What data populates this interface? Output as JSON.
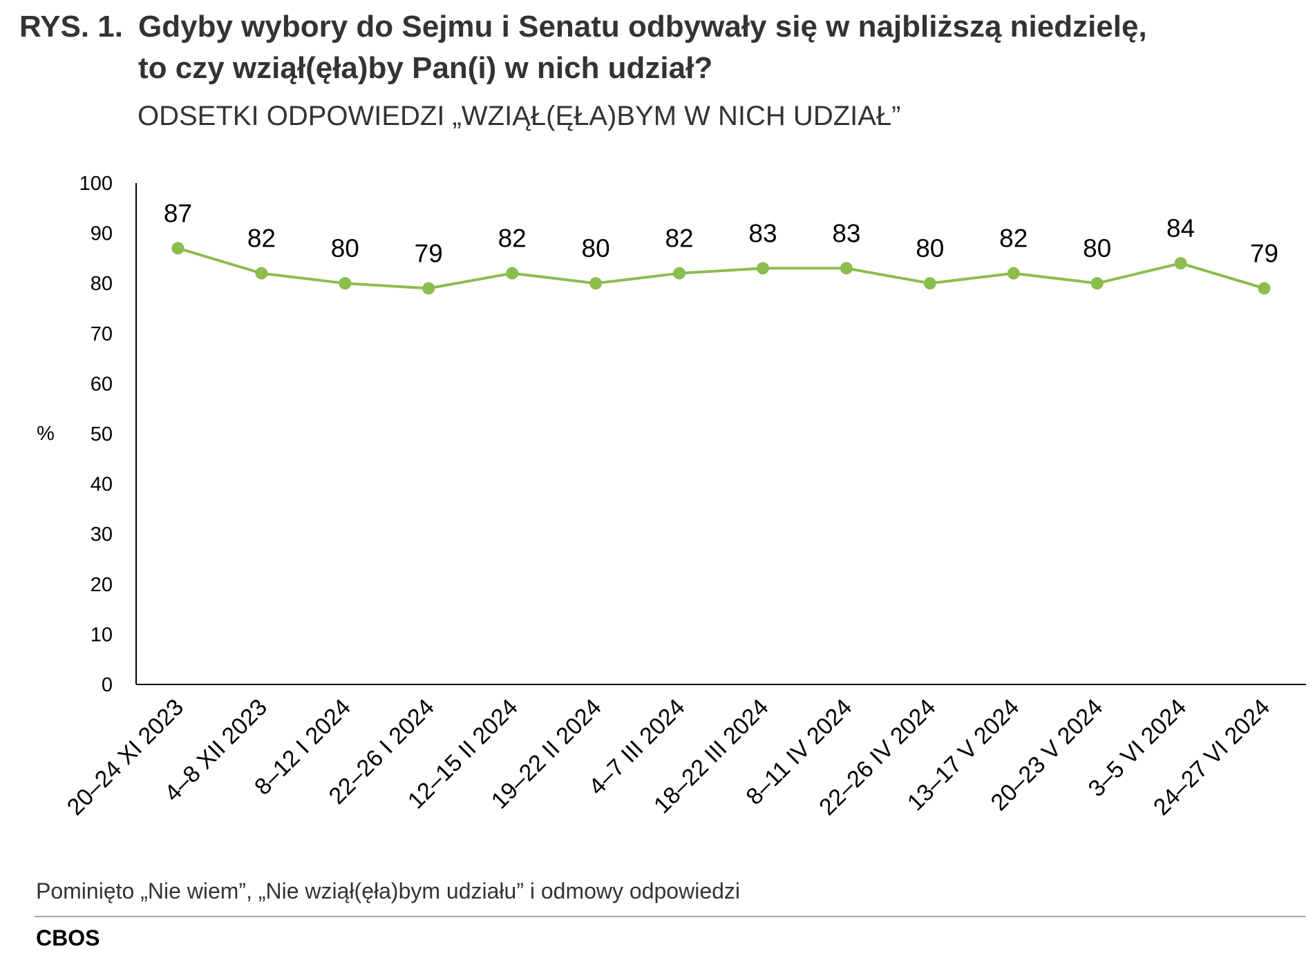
{
  "title": {
    "prefix": "RYS. 1.",
    "line1": "Gdyby wybory do Sejmu i Senatu odbywały się w najbliższą niedzielę,",
    "line2": "to czy wziął(ęła)by Pan(i) w nich udział?"
  },
  "subtitle": "ODSETKI ODPOWIEDZI „WZIĄŁ(ĘŁA)BYM W NICH UDZIAŁ”",
  "footnote": "Pominięto „Nie wiem”, „Nie wziął(ęła)bym udziału” i odmowy odpowiedzi",
  "source": "CBOS",
  "colors": {
    "line": "#8bbd4f",
    "axis": "#000000"
  },
  "chart_data": {
    "type": "line",
    "title": "Gdyby wybory do Sejmu i Senatu odbywały się w najbliższą niedzielę, to czy wziął(ęła)by Pan(i) w nich udział?",
    "subtitle": "ODSETKI ODPOWIEDZI „WZIĄŁ(ĘŁA)BYM W NICH UDZIAŁ”",
    "ylabel": "%",
    "xlabel": "",
    "ylim": [
      0,
      100
    ],
    "yticks": [
      0,
      10,
      20,
      30,
      40,
      50,
      60,
      70,
      80,
      90,
      100
    ],
    "grid": false,
    "legend": "none",
    "categories": [
      "20–24 XI 2023",
      "4–8 XII 2023",
      "8–12 I 2024",
      "22–26 I 2024",
      "12–15 II 2024",
      "19–22 II 2024",
      "4–7 III 2024",
      "18–22 III 2024",
      "8–11 IV 2024",
      "22–26 IV 2024",
      "13–17 V 2024",
      "20–23 V 2024",
      "3–5 VI 2024",
      "24–27 VI 2024"
    ],
    "series": [
      {
        "values": [
          87,
          82,
          80,
          79,
          82,
          80,
          82,
          83,
          83,
          80,
          82,
          80,
          84,
          79
        ]
      }
    ]
  }
}
